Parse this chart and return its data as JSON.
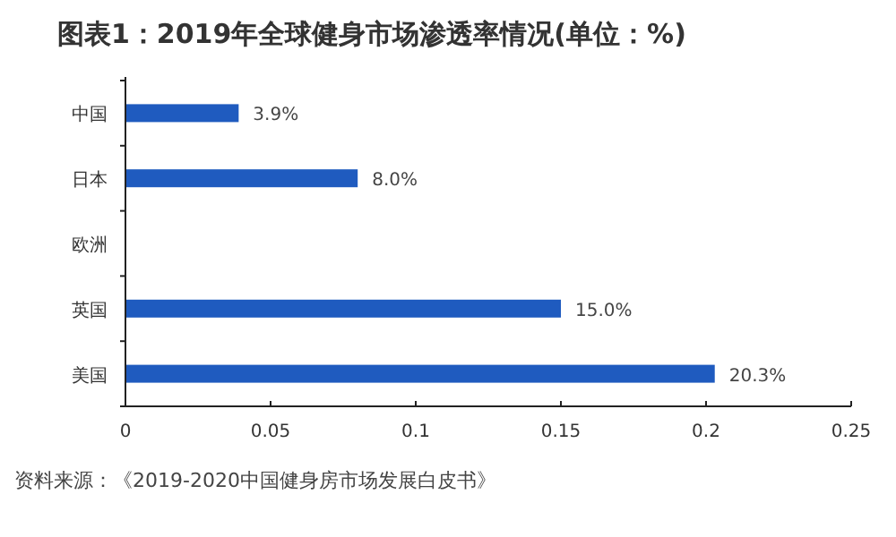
{
  "chart_data": {
    "type": "bar",
    "orientation": "horizontal",
    "title": "图表1：2019年全球健身市场渗透率情况(单位：%)",
    "categories": [
      "中国",
      "日本",
      "欧洲",
      "英国",
      "美国"
    ],
    "values": [
      0.039,
      0.08,
      null,
      0.15,
      0.203
    ],
    "value_labels": [
      "3.9%",
      "8.0%",
      null,
      "15.0%",
      "20.3%"
    ],
    "color": "#1f5bbf",
    "xlim": [
      0,
      0.25
    ],
    "xticks": [
      0,
      0.05,
      0.1,
      0.15,
      0.2,
      0.25
    ],
    "grid": false,
    "annotations": [
      "资料来源：《2019-2020中国健身房市场发展白皮书》"
    ]
  }
}
